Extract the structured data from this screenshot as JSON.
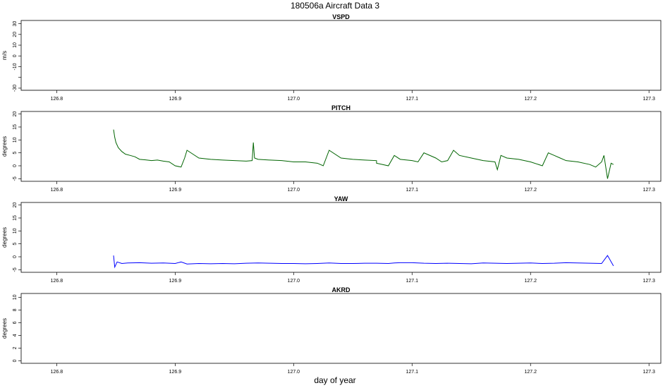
{
  "figure": {
    "title": "180506a   Aircraft Data 3",
    "xlabel": "day of year"
  },
  "chart_data": [
    {
      "type": "line",
      "title": "VSPD",
      "ylabel": "m/s",
      "xlim": [
        126.77,
        127.31
      ],
      "ylim": [
        -32,
        33
      ],
      "x_ticks": [
        "126.8",
        "126.9",
        "127.0",
        "127.1",
        "127.2",
        "127.3"
      ],
      "y_ticks": [
        "-30",
        "-10",
        "0",
        "10",
        "20",
        "30"
      ],
      "y_tick_values": [
        -30,
        -10,
        0,
        10,
        20,
        30
      ],
      "y_minor_ticks": [
        -20
      ],
      "color": "#1a1a1a",
      "x": [
        126.77,
        127.31
      ],
      "y": [
        -32,
        -32
      ]
    },
    {
      "type": "line",
      "title": "PITCH",
      "ylabel": "degrees",
      "xlim": [
        126.77,
        127.31
      ],
      "ylim": [
        -6,
        21
      ],
      "x_ticks": [
        "126.8",
        "126.9",
        "127.0",
        "127.1",
        "127.2",
        "127.3"
      ],
      "y_ticks": [
        "-5",
        "0",
        "5",
        "10",
        "15",
        "20"
      ],
      "y_tick_values": [
        -5,
        0,
        5,
        10,
        15,
        20
      ],
      "color": "#006400",
      "x": [
        126.848,
        126.849,
        126.85,
        126.852,
        126.855,
        126.858,
        126.862,
        126.866,
        126.87,
        126.875,
        126.88,
        126.885,
        126.89,
        126.895,
        126.9,
        126.905,
        126.908,
        126.91,
        126.915,
        126.92,
        126.93,
        126.94,
        126.95,
        126.96,
        126.965,
        126.966,
        126.967,
        126.97,
        126.98,
        126.99,
        127.0,
        127.01,
        127.02,
        127.025,
        127.03,
        127.04,
        127.05,
        127.06,
        127.07,
        127.07,
        127.08,
        127.085,
        127.09,
        127.1,
        127.105,
        127.11,
        127.12,
        127.125,
        127.13,
        127.135,
        127.14,
        127.15,
        127.16,
        127.17,
        127.172,
        127.175,
        127.18,
        127.19,
        127.2,
        127.21,
        127.215,
        127.22,
        127.225,
        127.23,
        127.24,
        127.25,
        127.255,
        127.26,
        127.262,
        127.265,
        127.268,
        127.27
      ],
      "y": [
        14,
        11,
        9,
        7,
        5.5,
        4.5,
        4,
        3.5,
        2.5,
        2.3,
        2,
        2.2,
        1.8,
        1.5,
        0,
        -0.5,
        3,
        6,
        4.5,
        3,
        2.5,
        2.2,
        2,
        1.8,
        2,
        9,
        3,
        2.5,
        2.2,
        2,
        1.5,
        1.5,
        1,
        0,
        6,
        3,
        2.5,
        2.2,
        2,
        1,
        0,
        4,
        2.5,
        2,
        1.5,
        5,
        3,
        1.5,
        2,
        6,
        4,
        3,
        2,
        1.5,
        -1.5,
        4,
        3,
        2.5,
        1.5,
        0,
        5,
        4,
        3,
        2,
        1.5,
        0.5,
        -0.5,
        1.5,
        4,
        -5,
        1,
        0.5
      ]
    },
    {
      "type": "line",
      "title": "YAW",
      "ylabel": "degrees",
      "xlim": [
        126.77,
        127.31
      ],
      "ylim": [
        -6,
        21
      ],
      "x_ticks": [
        "126.8",
        "126.9",
        "127.0",
        "127.1",
        "127.2",
        "127.3"
      ],
      "y_ticks": [
        "-5",
        "0",
        "5",
        "10",
        "15",
        "20"
      ],
      "y_tick_values": [
        -5,
        0,
        5,
        10,
        15,
        20
      ],
      "color": "#0000ff",
      "x": [
        126.848,
        126.849,
        126.851,
        126.855,
        126.86,
        126.87,
        126.88,
        126.89,
        126.9,
        126.905,
        126.91,
        126.92,
        126.93,
        126.94,
        126.95,
        126.96,
        126.97,
        126.98,
        126.99,
        127.0,
        127.01,
        127.02,
        127.03,
        127.04,
        127.05,
        127.06,
        127.07,
        127.08,
        127.085,
        127.09,
        127.1,
        127.11,
        127.12,
        127.13,
        127.14,
        127.15,
        127.16,
        127.17,
        127.18,
        127.19,
        127.2,
        127.21,
        127.22,
        127.23,
        127.24,
        127.25,
        127.26,
        127.265,
        127.27
      ],
      "y": [
        0.5,
        -4,
        -2,
        -2.6,
        -2.4,
        -2.3,
        -2.5,
        -2.4,
        -2.6,
        -2,
        -2.8,
        -2.6,
        -2.7,
        -2.6,
        -2.7,
        -2.5,
        -2.4,
        -2.5,
        -2.6,
        -2.6,
        -2.7,
        -2.6,
        -2.4,
        -2.6,
        -2.6,
        -2.5,
        -2.5,
        -2.6,
        -2.4,
        -2.3,
        -2.3,
        -2.5,
        -2.6,
        -2.5,
        -2.6,
        -2.7,
        -2.4,
        -2.5,
        -2.6,
        -2.5,
        -2.4,
        -2.6,
        -2.5,
        -2.3,
        -2.4,
        -2.5,
        -2.6,
        0.5,
        -3.5
      ]
    },
    {
      "type": "line",
      "title": "AKRD",
      "ylabel": "degrees",
      "xlim": [
        126.77,
        127.31
      ],
      "ylim": [
        -0.4,
        10.6
      ],
      "x_ticks": [
        "126.8",
        "126.9",
        "127.0",
        "127.1",
        "127.2",
        "127.3"
      ],
      "y_ticks": [
        "0",
        "2",
        "4",
        "6",
        "8",
        "10"
      ],
      "y_tick_values": [
        0,
        2,
        4,
        6,
        8,
        10
      ],
      "color": "#1a1a1a",
      "x": [],
      "y": []
    }
  ]
}
